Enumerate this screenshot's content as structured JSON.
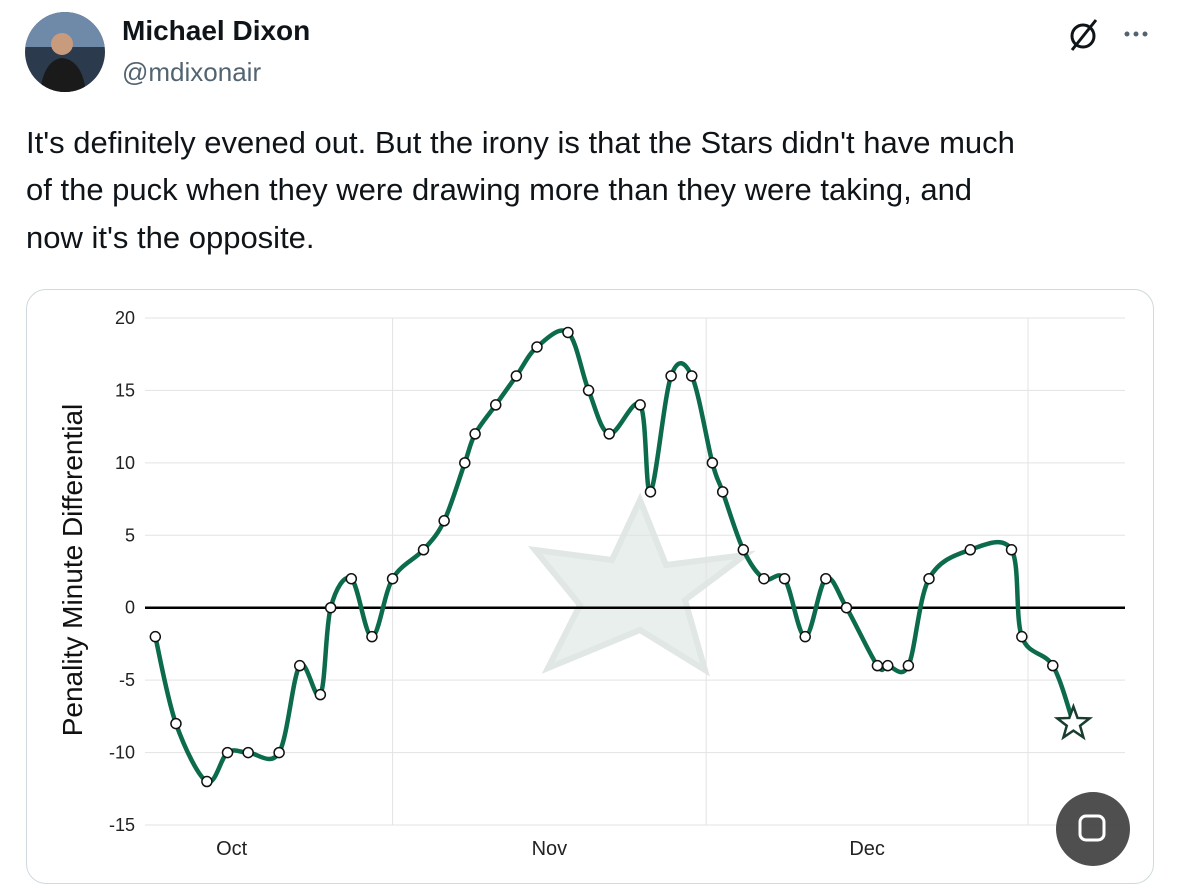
{
  "tweet": {
    "name": "Michael Dixon",
    "handle": "@mdixonair",
    "text_lines": [
      "It's definitely evened out. But the irony is that the Stars didn't have much",
      "of the puck when they were drawing more than they were taking, and",
      "now it's the opposite."
    ]
  },
  "chart_data": {
    "type": "line",
    "y_label": "Penality Minute Differential",
    "x": [
      8,
      10,
      13,
      15,
      17,
      20,
      22,
      24,
      25,
      27,
      29,
      31,
      34,
      36,
      38,
      39,
      41,
      43,
      45,
      48,
      50,
      52,
      55,
      56,
      58,
      60,
      62,
      63,
      65,
      67,
      69,
      71,
      73,
      75,
      78,
      79,
      81,
      83,
      87,
      91,
      92,
      95,
      97
    ],
    "values": [
      -2,
      -8,
      -12,
      -10,
      -10,
      -10,
      -4,
      -6,
      0,
      2,
      -2,
      2,
      4,
      6,
      10,
      12,
      14,
      16,
      18,
      19,
      15,
      12,
      14,
      8,
      16,
      16,
      10,
      8,
      4,
      2,
      2,
      -2,
      2,
      0,
      -4,
      -4,
      -4,
      2,
      4,
      4,
      -2,
      -4,
      -8
    ],
    "color": "#0b6b4c",
    "xlim": [
      7,
      102
    ],
    "ylim": [
      -15,
      20
    ],
    "xticks": [
      {
        "value": 15.4,
        "label": "Oct"
      },
      {
        "value": 46.2,
        "label": "Nov"
      },
      {
        "value": 77,
        "label": "Dec"
      }
    ],
    "xgrid": [
      31,
      61.4,
      92.6
    ],
    "yticks": [
      -15,
      -10,
      -5,
      0,
      5,
      10,
      15,
      20
    ],
    "grid": true
  }
}
